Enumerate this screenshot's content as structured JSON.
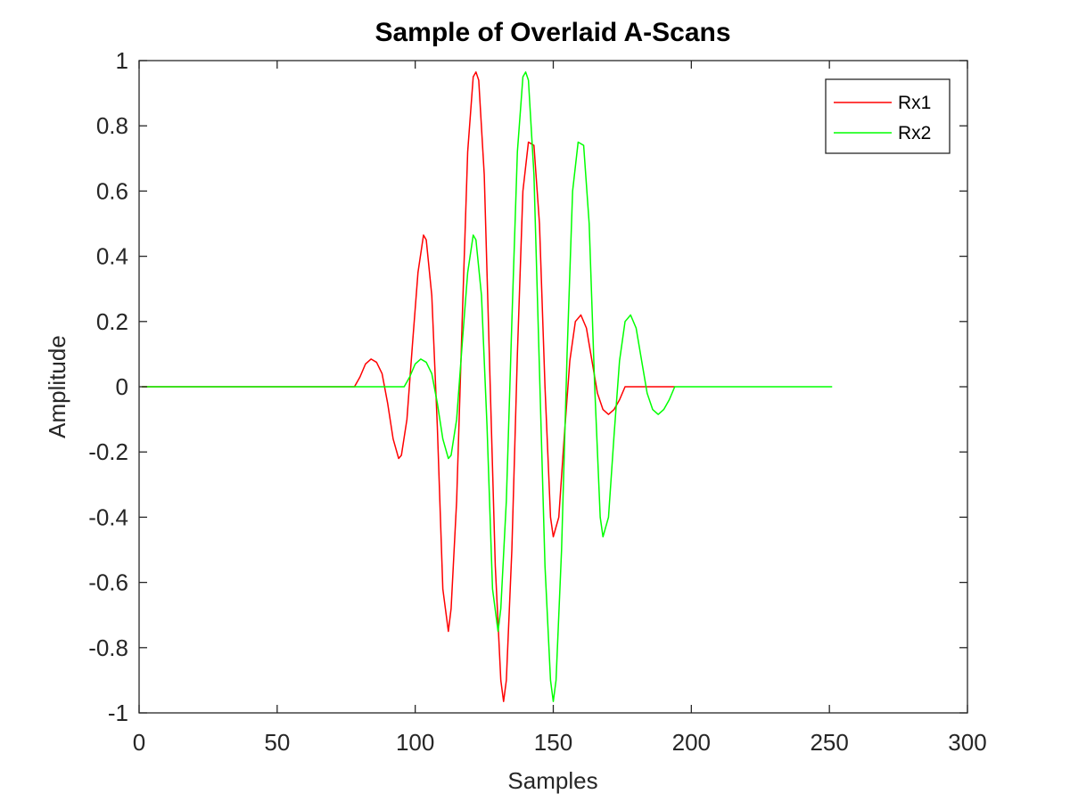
{
  "chart_data": {
    "type": "line",
    "title": "Sample of Overlaid A-Scans",
    "xlabel": "Samples",
    "ylabel": "Amplitude",
    "xlim": [
      0,
      300
    ],
    "ylim": [
      -1,
      1
    ],
    "xticks": [
      0,
      50,
      100,
      150,
      200,
      250,
      300
    ],
    "xtick_labels": [
      "0",
      "50",
      "100",
      "150",
      "200",
      "250",
      "300"
    ],
    "yticks": [
      -1,
      -0.8,
      -0.6,
      -0.4,
      -0.2,
      0,
      0.2,
      0.4,
      0.6,
      0.8,
      1
    ],
    "ytick_labels": [
      "-1",
      "-0.8",
      "-0.6",
      "-0.4",
      "-0.2",
      "0",
      "0.2",
      "0.4",
      "0.6",
      "0.8",
      "1"
    ],
    "grid": false,
    "legend_position": "top-right",
    "series": [
      {
        "name": "Rx1",
        "color": "#ff0000",
        "points": [
          [
            1,
            0
          ],
          [
            78,
            0
          ],
          [
            80,
            0.03
          ],
          [
            82,
            0.07
          ],
          [
            84,
            0.085
          ],
          [
            86,
            0.075
          ],
          [
            88,
            0.04
          ],
          [
            90,
            -0.05
          ],
          [
            92,
            -0.16
          ],
          [
            94,
            -0.22
          ],
          [
            95,
            -0.21
          ],
          [
            97,
            -0.1
          ],
          [
            99,
            0.13
          ],
          [
            101,
            0.35
          ],
          [
            103,
            0.465
          ],
          [
            104,
            0.45
          ],
          [
            106,
            0.28
          ],
          [
            108,
            -0.12
          ],
          [
            110,
            -0.62
          ],
          [
            112,
            -0.75
          ],
          [
            113,
            -0.68
          ],
          [
            115,
            -0.35
          ],
          [
            117,
            0.2
          ],
          [
            119,
            0.72
          ],
          [
            121,
            0.95
          ],
          [
            122,
            0.965
          ],
          [
            123,
            0.94
          ],
          [
            125,
            0.65
          ],
          [
            127,
            0.05
          ],
          [
            129,
            -0.55
          ],
          [
            131,
            -0.9
          ],
          [
            132,
            -0.965
          ],
          [
            133,
            -0.9
          ],
          [
            135,
            -0.5
          ],
          [
            137,
            0.1
          ],
          [
            139,
            0.6
          ],
          [
            141,
            0.75
          ],
          [
            143,
            0.74
          ],
          [
            145,
            0.5
          ],
          [
            147,
            0.0
          ],
          [
            149,
            -0.4
          ],
          [
            150,
            -0.46
          ],
          [
            152,
            -0.4
          ],
          [
            154,
            -0.15
          ],
          [
            156,
            0.08
          ],
          [
            158,
            0.2
          ],
          [
            160,
            0.22
          ],
          [
            162,
            0.18
          ],
          [
            164,
            0.08
          ],
          [
            166,
            -0.02
          ],
          [
            168,
            -0.07
          ],
          [
            170,
            -0.085
          ],
          [
            172,
            -0.07
          ],
          [
            174,
            -0.04
          ],
          [
            176,
            0
          ],
          [
            177,
            0
          ],
          [
            194,
            0
          ]
        ]
      },
      {
        "name": "Rx2",
        "color": "#00ff00",
        "points": [
          [
            1,
            0
          ],
          [
            96,
            0
          ],
          [
            98,
            0.03
          ],
          [
            100,
            0.07
          ],
          [
            102,
            0.085
          ],
          [
            104,
            0.075
          ],
          [
            106,
            0.04
          ],
          [
            108,
            -0.05
          ],
          [
            110,
            -0.16
          ],
          [
            112,
            -0.22
          ],
          [
            113,
            -0.21
          ],
          [
            115,
            -0.1
          ],
          [
            117,
            0.13
          ],
          [
            119,
            0.35
          ],
          [
            121,
            0.465
          ],
          [
            122,
            0.45
          ],
          [
            124,
            0.28
          ],
          [
            126,
            -0.12
          ],
          [
            128,
            -0.62
          ],
          [
            130,
            -0.75
          ],
          [
            131,
            -0.68
          ],
          [
            133,
            -0.35
          ],
          [
            135,
            0.2
          ],
          [
            137,
            0.72
          ],
          [
            139,
            0.95
          ],
          [
            140,
            0.965
          ],
          [
            141,
            0.94
          ],
          [
            143,
            0.65
          ],
          [
            145,
            0.05
          ],
          [
            147,
            -0.55
          ],
          [
            149,
            -0.9
          ],
          [
            150,
            -0.965
          ],
          [
            151,
            -0.9
          ],
          [
            153,
            -0.5
          ],
          [
            155,
            0.1
          ],
          [
            157,
            0.6
          ],
          [
            159,
            0.75
          ],
          [
            161,
            0.74
          ],
          [
            163,
            0.5
          ],
          [
            165,
            0.0
          ],
          [
            167,
            -0.4
          ],
          [
            168,
            -0.46
          ],
          [
            170,
            -0.4
          ],
          [
            172,
            -0.15
          ],
          [
            174,
            0.08
          ],
          [
            176,
            0.2
          ],
          [
            178,
            0.22
          ],
          [
            180,
            0.18
          ],
          [
            182,
            0.08
          ],
          [
            184,
            -0.02
          ],
          [
            186,
            -0.07
          ],
          [
            188,
            -0.085
          ],
          [
            190,
            -0.07
          ],
          [
            192,
            -0.04
          ],
          [
            194,
            0
          ],
          [
            195,
            0
          ],
          [
            251,
            0
          ]
        ]
      }
    ]
  }
}
